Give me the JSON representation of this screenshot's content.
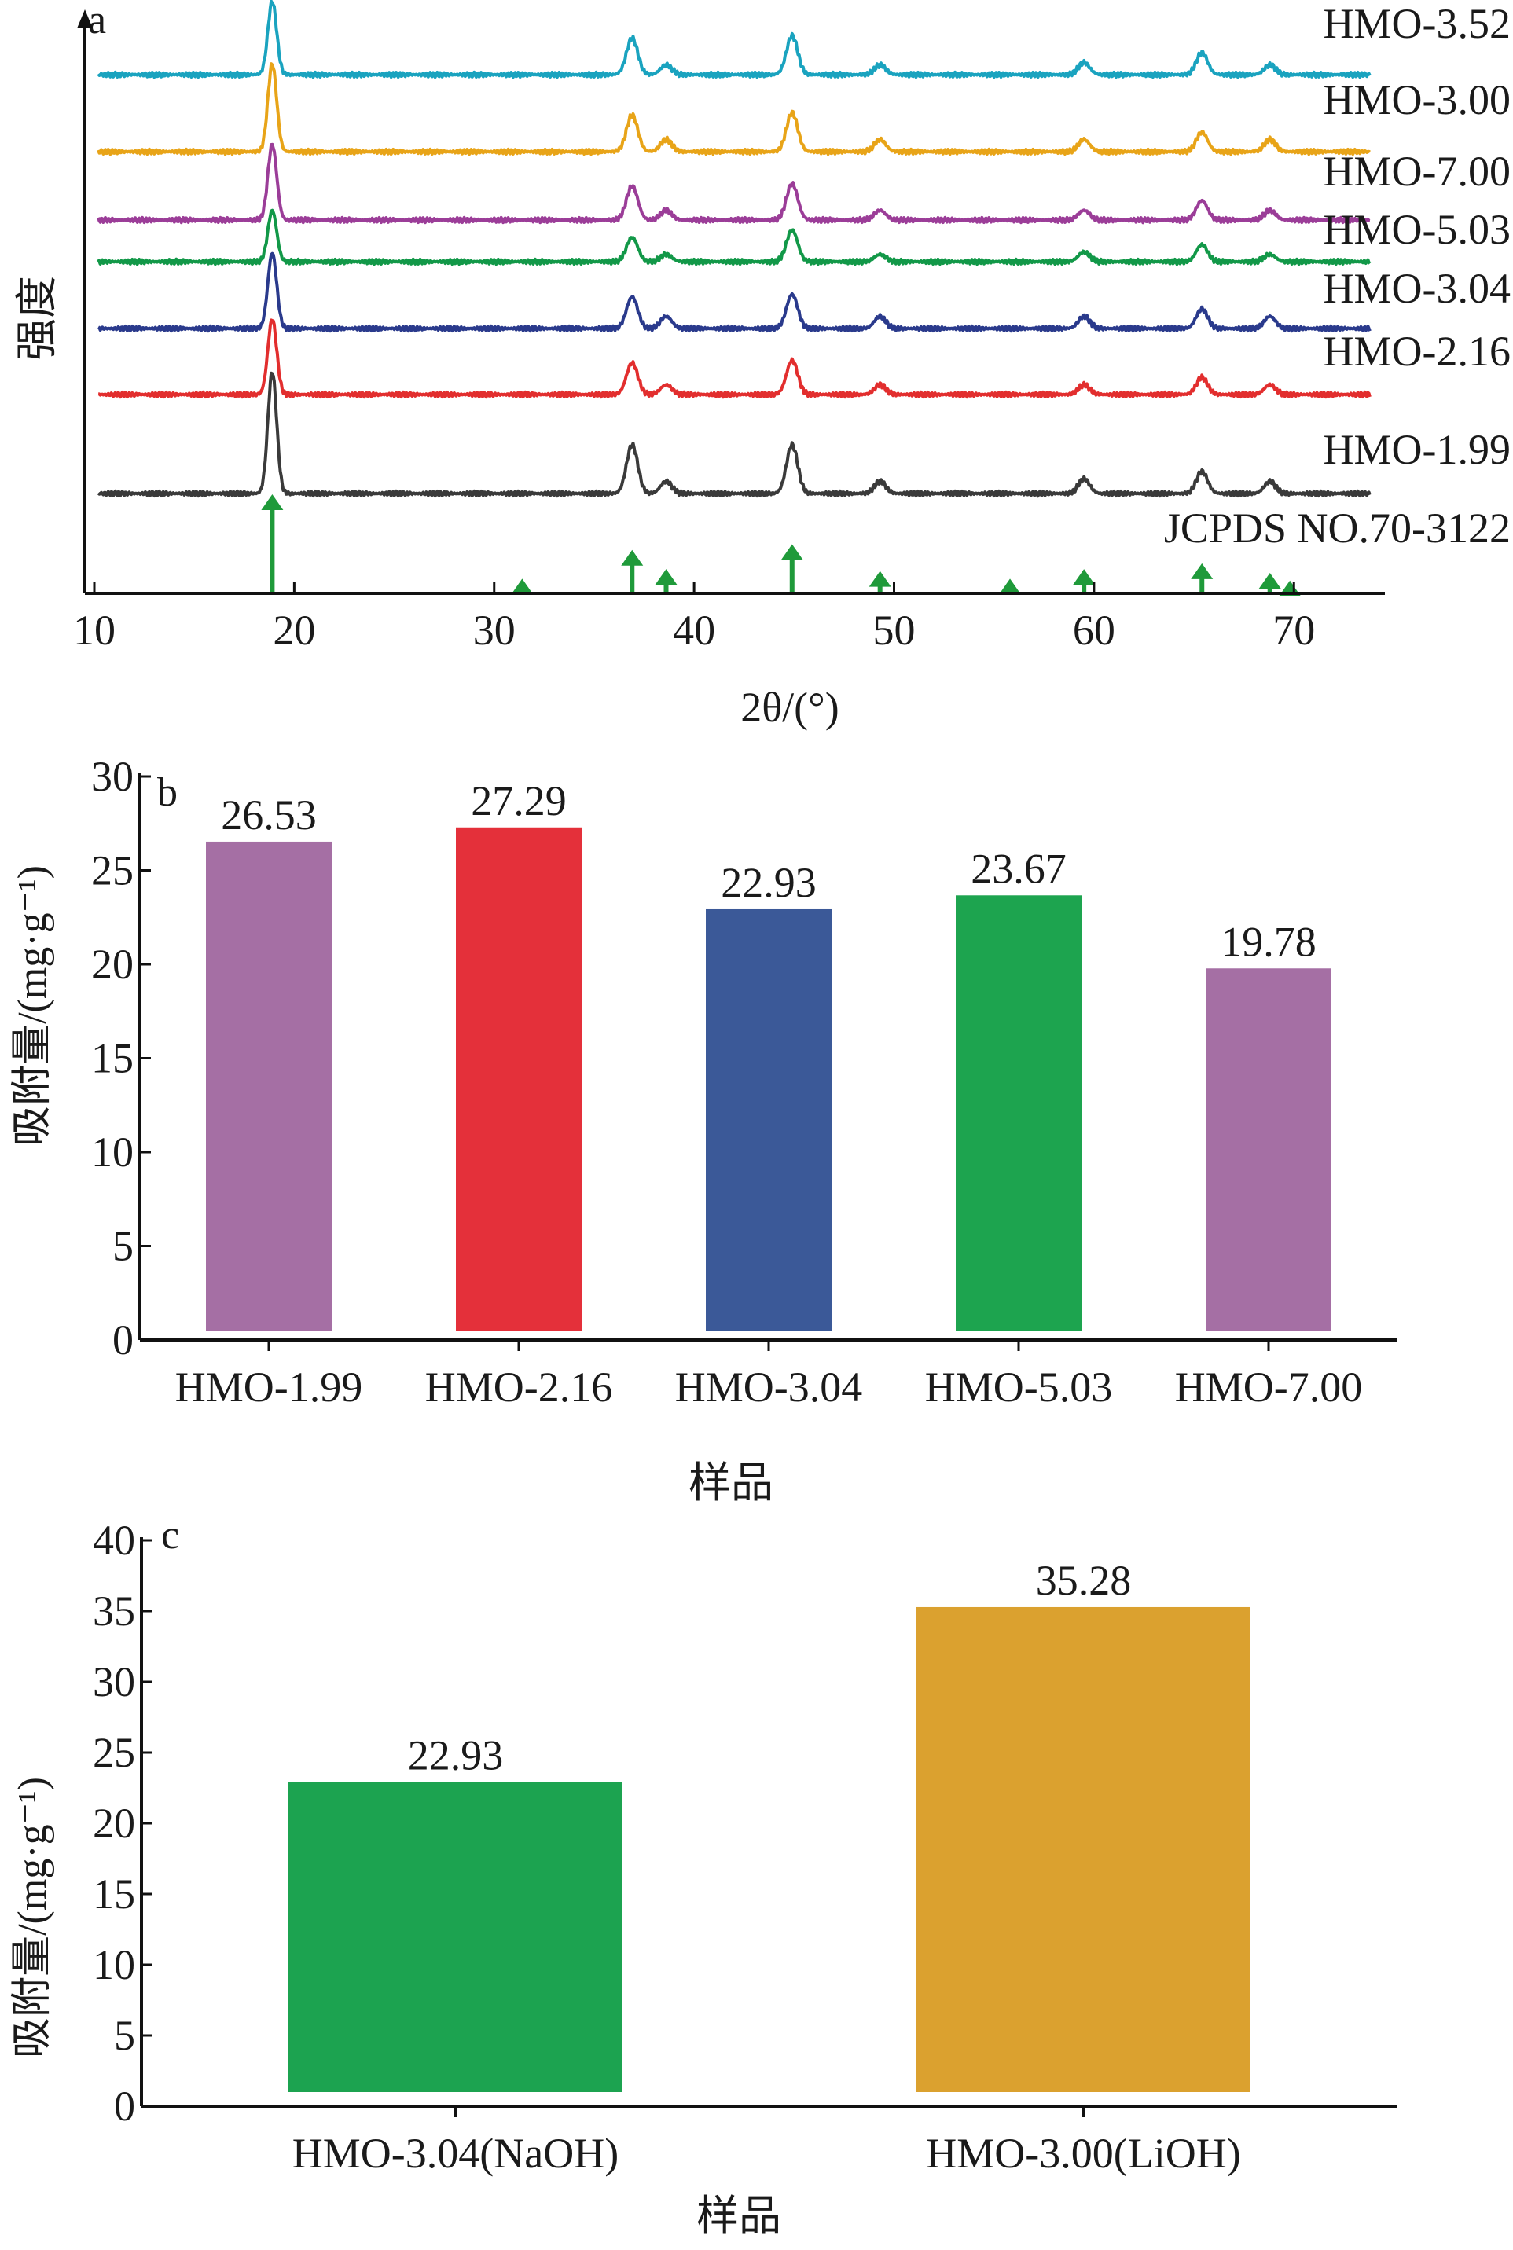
{
  "chart_data": [
    {
      "panel": "a",
      "type": "line",
      "xlabel": "2θ/(°)",
      "ylabel": "强度",
      "xlim": [
        10,
        74
      ],
      "xticks": [
        10,
        20,
        30,
        40,
        50,
        60,
        70
      ],
      "grid": false,
      "peak_positions": [
        18.9,
        36.9,
        38.6,
        44.9,
        49.3,
        59.5,
        65.4,
        68.8
      ],
      "series": [
        {
          "name": "HMO-3.52",
          "color": "#1aa3bf",
          "peaks": [
            0.6,
            0.3,
            0.08,
            0.32,
            0.08,
            0.1,
            0.18,
            0.08
          ]
        },
        {
          "name": "HMO-3.00",
          "color": "#e8a418",
          "peaks": [
            0.72,
            0.3,
            0.1,
            0.32,
            0.1,
            0.1,
            0.16,
            0.1
          ]
        },
        {
          "name": "HMO-7.00",
          "color": "#9b3d98",
          "peaks": [
            0.62,
            0.28,
            0.08,
            0.3,
            0.08,
            0.08,
            0.16,
            0.08
          ]
        },
        {
          "name": "HMO-5.03",
          "color": "#129848",
          "peaks": [
            0.42,
            0.2,
            0.06,
            0.26,
            0.06,
            0.08,
            0.14,
            0.06
          ]
        },
        {
          "name": "HMO-3.04",
          "color": "#2a3a8c",
          "peaks": [
            0.62,
            0.26,
            0.1,
            0.28,
            0.1,
            0.1,
            0.16,
            0.1
          ]
        },
        {
          "name": "HMO-2.16",
          "color": "#e22e2e",
          "peaks": [
            0.62,
            0.26,
            0.08,
            0.28,
            0.08,
            0.08,
            0.14,
            0.08
          ]
        },
        {
          "name": "HMO-1.99",
          "color": "#3a3a3a",
          "peaks": [
            1.0,
            0.4,
            0.1,
            0.4,
            0.1,
            0.12,
            0.18,
            0.1
          ]
        }
      ],
      "reference": {
        "name": "JCPDS NO.70-3122",
        "color": "#1f9a3a",
        "lines": [
          {
            "x": 18.9,
            "h": 1.0
          },
          {
            "x": 31.4,
            "h": 0.12
          },
          {
            "x": 36.9,
            "h": 0.42
          },
          {
            "x": 38.6,
            "h": 0.22
          },
          {
            "x": 44.9,
            "h": 0.48
          },
          {
            "x": 49.3,
            "h": 0.2
          },
          {
            "x": 55.8,
            "h": 0.12
          },
          {
            "x": 59.5,
            "h": 0.22
          },
          {
            "x": 65.4,
            "h": 0.28
          },
          {
            "x": 68.8,
            "h": 0.18
          },
          {
            "x": 69.8,
            "h": 0.1
          }
        ]
      }
    },
    {
      "panel": "b",
      "type": "bar",
      "xlabel": "样品",
      "ylabel": "吸附量/(mg·g⁻¹)",
      "ylim": [
        0,
        30
      ],
      "yticks": [
        0,
        5,
        10,
        15,
        20,
        25,
        30
      ],
      "categories": [
        "HMO-1.99",
        "HMO-2.16",
        "HMO-3.04",
        "HMO-5.03",
        "HMO-7.00"
      ],
      "values": [
        26.53,
        27.29,
        22.93,
        23.67,
        19.78
      ],
      "value_labels": [
        "26.53",
        "27.29",
        "22.93",
        "23.67",
        "19.78"
      ],
      "colors": [
        "#a56fa4",
        "#e4303a",
        "#3b5998",
        "#1da44f",
        "#a56fa4"
      ]
    },
    {
      "panel": "c",
      "type": "bar",
      "xlabel": "样品",
      "ylabel": "吸附量/(mg·g⁻¹)",
      "ylim": [
        0,
        40
      ],
      "yticks": [
        0,
        5,
        10,
        15,
        20,
        25,
        30,
        35,
        40
      ],
      "categories": [
        "HMO-3.04(NaOH)",
        "HMO-3.00(LiOH)"
      ],
      "values": [
        22.93,
        35.28
      ],
      "value_labels": [
        "22.93",
        "35.28"
      ],
      "colors": [
        "#1ca350",
        "#dba12f"
      ]
    }
  ]
}
